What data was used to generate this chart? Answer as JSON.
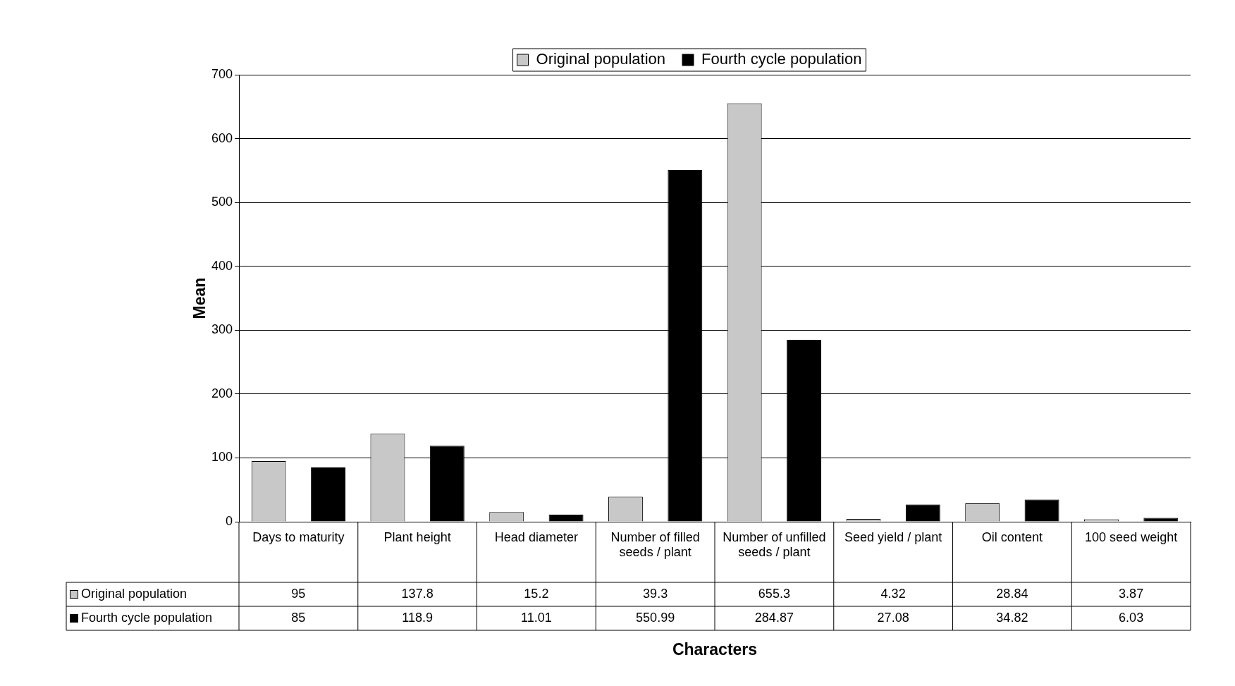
{
  "chart_data": {
    "type": "bar",
    "xlabel": "Characters",
    "ylabel": "Mean",
    "categories": [
      "Days to maturity",
      "Plant height",
      "Head diameter",
      "Number of filled seeds / plant",
      "Number of unfilled seeds / plant",
      "Seed yield / plant",
      "Oil content",
      "100 seed weight"
    ],
    "series": [
      {
        "name": "Original population",
        "color": "#c8c8c8",
        "values": [
          95,
          137.8,
          15.2,
          39.3,
          655.3,
          4.32,
          28.84,
          3.87
        ]
      },
      {
        "name": "Fourth cycle population",
        "color": "#000000",
        "values": [
          85,
          118.9,
          11.01,
          550.99,
          284.87,
          27.08,
          34.82,
          6.03
        ]
      }
    ],
    "ylim": [
      0,
      700
    ],
    "yticks": [
      0,
      100,
      200,
      300,
      400,
      500,
      600,
      700
    ],
    "grid": "y",
    "legend": "top",
    "data_labels": true
  }
}
